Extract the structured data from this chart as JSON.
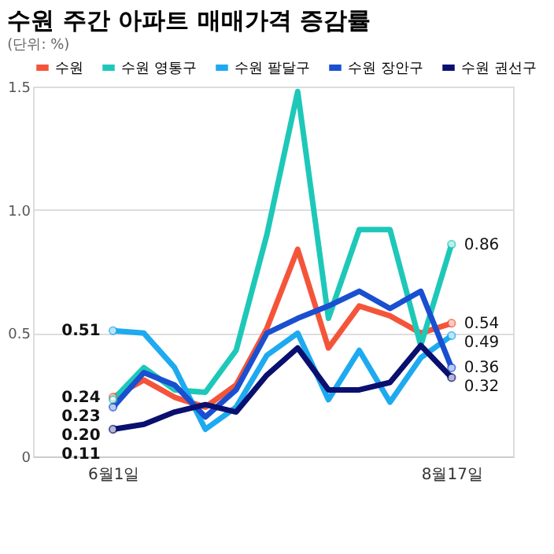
{
  "chart_data": {
    "type": "line",
    "title": "수원 주간 아파트 매매가격 증감률",
    "subtitle": "(단위: %)",
    "categories": [
      "6월1일",
      null,
      null,
      null,
      null,
      null,
      null,
      null,
      null,
      null,
      null,
      "8월17일"
    ],
    "series": [
      {
        "name": "수원",
        "color": "#f4553a",
        "values": [
          0.24,
          0.31,
          0.24,
          0.2,
          0.29,
          0.52,
          0.84,
          0.44,
          0.61,
          0.57,
          0.5,
          0.54
        ],
        "value_labels": [
          "0.24",
          null,
          null,
          null,
          null,
          null,
          null,
          null,
          null,
          null,
          null,
          "0.54"
        ]
      },
      {
        "name": "수원 영통구",
        "color": "#1ec8b8",
        "values": [
          0.23,
          0.36,
          0.27,
          0.26,
          0.43,
          0.9,
          1.48,
          0.56,
          0.92,
          0.92,
          0.45,
          0.86
        ],
        "value_labels": [
          "0.23",
          null,
          null,
          null,
          null,
          null,
          null,
          null,
          null,
          null,
          null,
          "0.86"
        ]
      },
      {
        "name": "수원 팔달구",
        "color": "#1eaaf0",
        "values": [
          0.51,
          0.5,
          0.36,
          0.11,
          0.2,
          0.41,
          0.5,
          0.23,
          0.43,
          0.22,
          0.4,
          0.49
        ],
        "value_labels": [
          "0.51",
          null,
          null,
          null,
          null,
          null,
          null,
          null,
          null,
          null,
          null,
          "0.49"
        ]
      },
      {
        "name": "수원 장안구",
        "color": "#1a4fd0",
        "values": [
          0.2,
          0.34,
          0.29,
          0.16,
          0.27,
          0.5,
          0.56,
          0.61,
          0.67,
          0.6,
          0.67,
          0.36
        ],
        "value_labels": [
          "0.20",
          null,
          null,
          null,
          null,
          null,
          null,
          null,
          null,
          null,
          null,
          "0.36"
        ]
      },
      {
        "name": "수원 권선구",
        "color": "#0a1070",
        "values": [
          0.11,
          0.13,
          0.18,
          0.21,
          0.18,
          0.33,
          0.44,
          0.27,
          0.27,
          0.3,
          0.45,
          0.32
        ],
        "value_labels": [
          "0.11",
          null,
          null,
          null,
          null,
          null,
          null,
          null,
          null,
          null,
          null,
          "0.32"
        ]
      }
    ],
    "ylim": [
      0,
      1.5
    ],
    "yticks": [
      0,
      {
        "value": 0.5,
        "label": "0.5"
      },
      {
        "value": 1.0,
        "label": "1.0"
      },
      1.5
    ],
    "grid": "y",
    "legend": "top",
    "line_style": "solid"
  }
}
